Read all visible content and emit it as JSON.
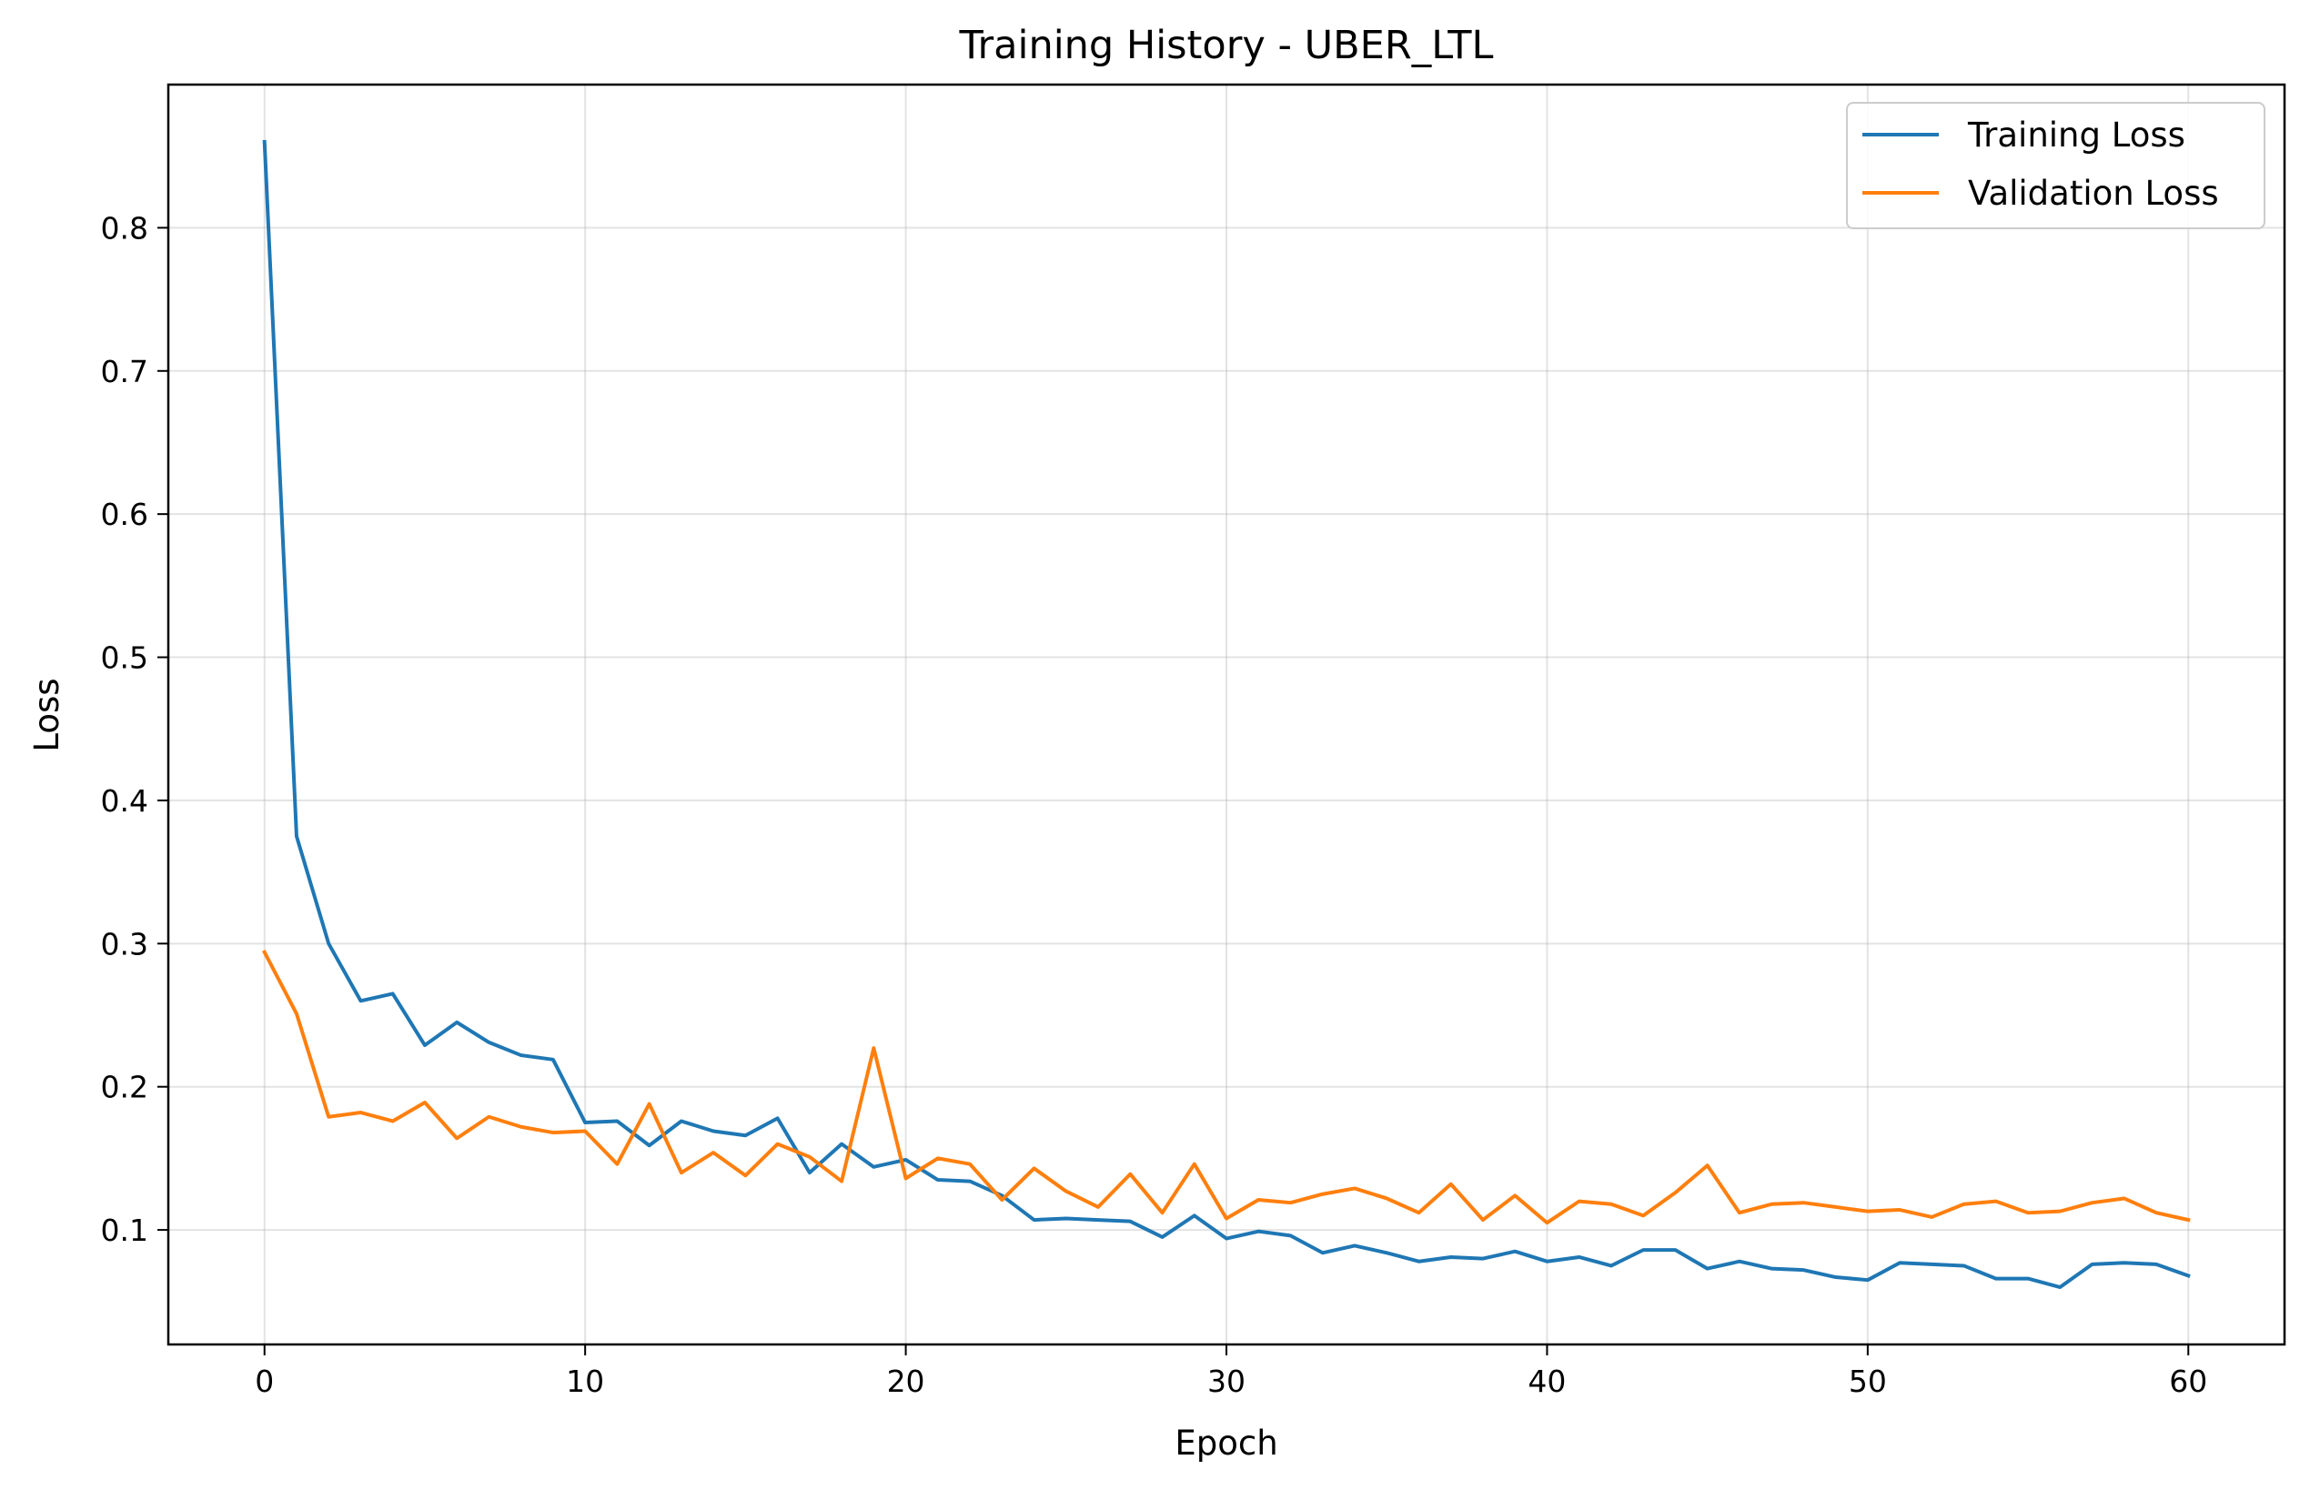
{
  "chart_data": {
    "type": "line",
    "title": "Training History - UBER_LTL",
    "xlabel": "Epoch",
    "ylabel": "Loss",
    "xlim": [
      -3,
      63
    ],
    "ylim": [
      0.02,
      0.9
    ],
    "xticks": [
      0,
      10,
      20,
      30,
      40,
      50,
      60
    ],
    "yticks": [
      0.1,
      0.2,
      0.3,
      0.4,
      0.5,
      0.6,
      0.7,
      0.8
    ],
    "grid": true,
    "legend_position": "top-right",
    "x": [
      0,
      1,
      2,
      3,
      4,
      5,
      6,
      7,
      8,
      9,
      10,
      11,
      12,
      13,
      14,
      15,
      16,
      17,
      18,
      19,
      20,
      21,
      22,
      23,
      24,
      25,
      26,
      27,
      28,
      29,
      30,
      31,
      32,
      33,
      34,
      35,
      36,
      37,
      38,
      39,
      40,
      41,
      42,
      43,
      44,
      45,
      46,
      47,
      48,
      49,
      50,
      51,
      52,
      53,
      54,
      55,
      56,
      57,
      58,
      59,
      60
    ],
    "series": [
      {
        "name": "Training Loss",
        "color": "#1f77b4",
        "values": [
          0.86,
          0.375,
          0.3,
          0.26,
          0.265,
          0.229,
          0.245,
          0.231,
          0.222,
          0.219,
          0.175,
          0.176,
          0.159,
          0.176,
          0.169,
          0.166,
          0.178,
          0.14,
          0.16,
          0.144,
          0.149,
          0.135,
          0.134,
          0.124,
          0.107,
          0.108,
          0.107,
          0.106,
          0.095,
          0.11,
          0.094,
          0.099,
          0.096,
          0.084,
          0.089,
          0.084,
          0.078,
          0.081,
          0.08,
          0.085,
          0.078,
          0.081,
          0.075,
          0.086,
          0.086,
          0.073,
          0.078,
          0.073,
          0.072,
          0.067,
          0.065,
          0.077,
          0.076,
          0.075,
          0.066,
          0.066,
          0.06,
          0.076,
          0.077,
          0.076,
          0.068
        ]
      },
      {
        "name": "Validation Loss",
        "color": "#ff7f0e",
        "values": [
          0.294,
          0.251,
          0.179,
          0.182,
          0.176,
          0.189,
          0.164,
          0.179,
          0.172,
          0.168,
          0.169,
          0.146,
          0.188,
          0.14,
          0.154,
          0.138,
          0.16,
          0.151,
          0.134,
          0.227,
          0.136,
          0.15,
          0.146,
          0.121,
          0.143,
          0.127,
          0.116,
          0.139,
          0.112,
          0.146,
          0.108,
          0.121,
          0.119,
          0.125,
          0.129,
          0.122,
          0.112,
          0.132,
          0.107,
          0.124,
          0.105,
          0.12,
          0.118,
          0.11,
          0.126,
          0.145,
          0.112,
          0.118,
          0.119,
          0.116,
          0.113,
          0.114,
          0.109,
          0.118,
          0.12,
          0.112,
          0.113,
          0.119,
          0.122,
          0.112,
          0.107
        ]
      }
    ]
  }
}
